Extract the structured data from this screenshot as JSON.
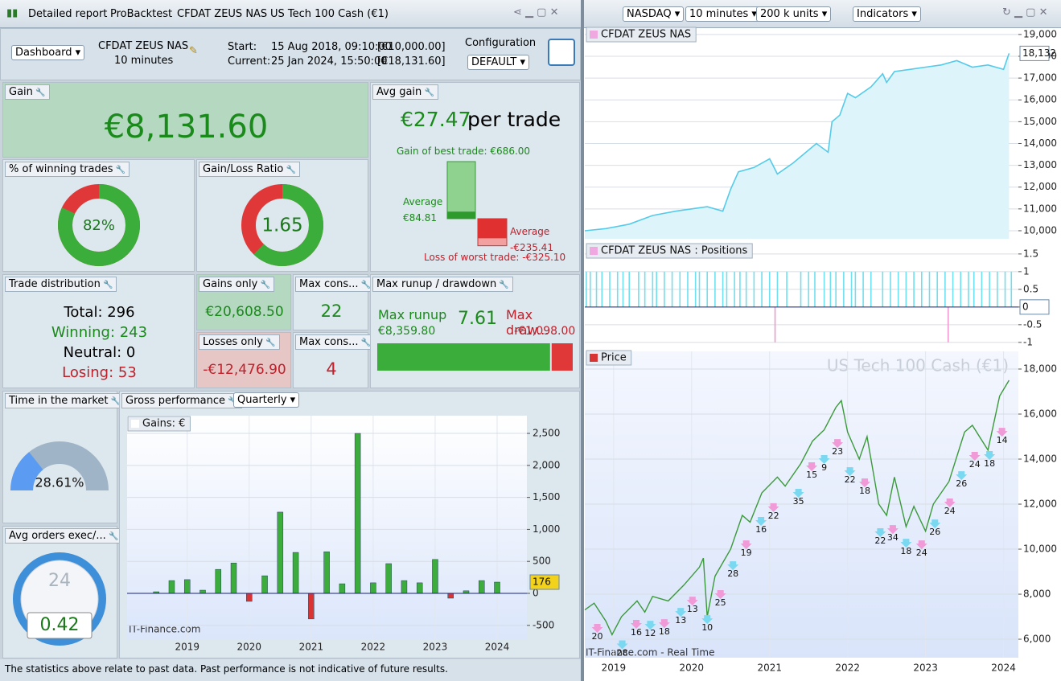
{
  "left_toolbar": {
    "title": "Detailed report",
    "tabs": [
      "ProBacktest",
      "CFDAT ZEUS NAS",
      "US Tech 100 Cash (€1)"
    ]
  },
  "header": {
    "view_select": "Dashboard",
    "system_name": "CFDAT ZEUS NAS",
    "timeframe": "10 minutes",
    "start_label": "Start:",
    "start_value": "15 Aug 2018, 09:10:00",
    "start_capital": "[€10,000.00]",
    "current_label": "Current:",
    "current_value": "25 Jan 2024, 15:50:00",
    "current_capital": "[€18,131.60]",
    "config_label": "Configuration",
    "config_select": "DEFAULT"
  },
  "gain": {
    "label": "Gain",
    "value": "€8,131.60"
  },
  "avg_gain": {
    "label": "Avg gain",
    "value": "€27.47",
    "unit": "per trade",
    "best_trade": "Gain of best trade: €686.00",
    "average_win_label": "Average",
    "average_win": "€84.81",
    "average_loss_label": "Average",
    "average_loss": "-€235.41",
    "worst_trade": "Loss of worst trade: -€325.10",
    "bars": {
      "best": 686,
      "average_win": 84.81,
      "average_loss": -235.41,
      "worst": -325.1
    }
  },
  "winning_trades": {
    "label": "% of winning trades",
    "value": 82,
    "value_label": "82%"
  },
  "gain_loss_ratio": {
    "label": "Gain/Loss Ratio",
    "value": 1.65
  },
  "trade_distribution": {
    "label": "Trade distribution",
    "total": "Total: 296",
    "winning": "Winning: 243",
    "neutral": "Neutral: 0",
    "losing": "Losing: 53"
  },
  "gains_only": {
    "label": "Gains only",
    "value": "€20,608.50"
  },
  "losses_only": {
    "label": "Losses only",
    "value": "-€12,476.90"
  },
  "max_consecutive_wins": {
    "label": "Max cons...",
    "value": 22
  },
  "max_consecutive_losses": {
    "label": "Max cons...",
    "value": 4
  },
  "runup_drawdown": {
    "label": "Max runup / drawdown",
    "runup_label": "Max runup",
    "runup": "€8,359.80",
    "ratio": 7.61,
    "drawdown_label": "Max draw...",
    "drawdown": "-€1,098.00",
    "bar": {
      "runup": 8359.8,
      "drawdown": 1098
    }
  },
  "time_in_market": {
    "label": "Time in the market",
    "value": 28.61,
    "value_label": "28.61%"
  },
  "avg_orders": {
    "label": "Avg orders exec/...",
    "clock": 24,
    "value": 0.42
  },
  "gross_performance": {
    "label": "Gross performance",
    "period": "Quarterly",
    "chart": {
      "type": "bar",
      "legend": "Gains: €",
      "watermark": "IT-Finance.com",
      "x": [
        2018.5,
        2018.75,
        2019.0,
        2019.25,
        2019.5,
        2019.75,
        2020.0,
        2020.25,
        2020.5,
        2020.75,
        2021.0,
        2021.25,
        2021.5,
        2021.75,
        2022.0,
        2022.25,
        2022.5,
        2022.75,
        2023.0,
        2023.25,
        2023.5,
        2023.75,
        2024.0
      ],
      "values": [
        25,
        200,
        215,
        50,
        375,
        475,
        -125,
        275,
        1270,
        640,
        -400,
        650,
        150,
        2500,
        165,
        465,
        200,
        165,
        530,
        -75,
        40,
        200,
        176
      ],
      "xlim": [
        2018.03,
        2024.48
      ],
      "ylim": [
        -716,
        2777
      ],
      "xticks": [
        2019,
        2020,
        2021,
        2022,
        2023,
        2024
      ],
      "yticks": [
        -500,
        0,
        500,
        {
          "value": 1000,
          "label": "1,000"
        },
        {
          "value": 1500,
          "label": "1,500"
        },
        {
          "value": 2000,
          "label": "2,000"
        },
        {
          "value": 2500,
          "label": "2,500"
        }
      ]
    }
  },
  "footer": "The statistics above relate to past data. Past performance is not indicative of future results.",
  "right_toolbar": {
    "market": "NASDAQ",
    "timeframe": "10 minutes",
    "size": "200 k units",
    "indicators": "Indicators"
  },
  "equity_chart": {
    "type": "line",
    "title": "CFDAT ZEUS NAS",
    "x": [
      2018.63,
      2018.9,
      2019.2,
      2019.5,
      2019.8,
      2020.0,
      2020.2,
      2020.4,
      2020.5,
      2020.6,
      2020.8,
      2021.0,
      2021.1,
      2021.3,
      2021.5,
      2021.6,
      2021.75,
      2021.8,
      2021.9,
      2022.0,
      2022.1,
      2022.3,
      2022.45,
      2022.5,
      2022.6,
      2022.8,
      2023.0,
      2023.2,
      2023.4,
      2023.6,
      2023.8,
      2024.0,
      2024.07
    ],
    "values": [
      10000,
      10100,
      10300,
      10700,
      10900,
      11000,
      11100,
      10900,
      11900,
      12700,
      12900,
      13300,
      12600,
      13100,
      13700,
      14000,
      13600,
      15000,
      15300,
      16300,
      16100,
      16600,
      17200,
      16800,
      17300,
      17400,
      17500,
      17600,
      17800,
      17500,
      17600,
      17400,
      18132
    ],
    "value_labels": [
      null,
      null,
      null,
      null,
      null,
      null,
      null,
      null,
      null,
      null,
      null,
      null,
      null,
      null,
      null,
      null,
      null,
      null,
      null,
      null,
      null,
      null,
      null,
      null,
      null,
      null,
      null,
      null,
      null,
      null,
      null,
      null,
      "18,132"
    ],
    "xlim": [
      2018.63,
      2024.19
    ],
    "ylim": [
      9630,
      19290
    ],
    "yticks": [
      {
        "value": 10000,
        "label": "10,000"
      },
      {
        "value": 11000,
        "label": "11,000"
      },
      {
        "value": 12000,
        "label": "12,000"
      },
      {
        "value": 13000,
        "label": "13,000"
      },
      {
        "value": 14000,
        "label": "14,000"
      },
      {
        "value": 15000,
        "label": "15,000"
      },
      {
        "value": 16000,
        "label": "16,000"
      },
      {
        "value": 17000,
        "label": "17,000"
      },
      {
        "value": 18000,
        "label": "18,000"
      },
      {
        "value": 19000,
        "label": "19,000"
      }
    ]
  },
  "positions_chart": {
    "type": "bar",
    "title": "CFDAT ZEUS NAS : Positions",
    "x": [
      2018.65,
      2018.7,
      2018.78,
      2018.85,
      2018.95,
      2019.05,
      2019.12,
      2019.2,
      2019.32,
      2019.4,
      2019.5,
      2019.55,
      2019.65,
      2019.75,
      2019.85,
      2019.95,
      2020.05,
      2020.1,
      2020.2,
      2020.3,
      2020.4,
      2020.45,
      2020.55,
      2020.62,
      2020.7,
      2020.8,
      2020.9,
      2021.0,
      2021.07,
      2021.1,
      2021.22,
      2021.4,
      2021.5,
      2021.58,
      2021.7,
      2021.78,
      2021.85,
      2021.95,
      2022.05,
      2022.1,
      2022.2,
      2022.3,
      2022.45,
      2022.55,
      2022.65,
      2022.75,
      2022.85,
      2022.95,
      2023.05,
      2023.15,
      2023.25,
      2023.29,
      2023.35,
      2023.45,
      2023.55,
      2023.62,
      2023.72,
      2023.82,
      2023.92,
      2024.02,
      2024.1,
      2024.19
    ],
    "values": [
      1,
      1,
      1,
      1,
      1,
      1,
      1,
      1,
      1,
      1,
      1,
      1,
      1,
      1,
      1,
      1,
      1,
      1,
      1,
      1,
      1,
      1,
      1,
      1,
      1,
      1,
      1,
      1,
      -1,
      1,
      1,
      1,
      1,
      1,
      1,
      1,
      1,
      1,
      1,
      1,
      1,
      1,
      1,
      1,
      1,
      1,
      1,
      1,
      1,
      1,
      1,
      -1,
      1,
      1,
      1,
      1,
      1,
      1,
      1,
      1,
      1,
      0
    ],
    "xlim": [
      2018.63,
      2024.19
    ],
    "ylim": [
      -1.14,
      1.77
    ],
    "yticks": [
      1.5,
      1,
      0.5,
      0,
      -0.5,
      -1
    ]
  },
  "price_chart": {
    "type": "line",
    "title": "Price",
    "watermark": "US Tech 100 Cash (€1)",
    "x": [
      2018.63,
      2018.75,
      2018.9,
      2018.98,
      2019.1,
      2019.3,
      2019.4,
      2019.5,
      2019.7,
      2019.9,
      2020.1,
      2020.15,
      2020.2,
      2020.3,
      2020.5,
      2020.65,
      2020.75,
      2020.9,
      2021.1,
      2021.2,
      2021.4,
      2021.55,
      2021.7,
      2021.85,
      2021.92,
      2022.0,
      2022.15,
      2022.25,
      2022.4,
      2022.5,
      2022.6,
      2022.75,
      2022.85,
      2023.0,
      2023.1,
      2023.3,
      2023.5,
      2023.6,
      2023.8,
      2023.95,
      2024.07
    ],
    "values": [
      7300,
      7600,
      6800,
      6200,
      7000,
      7700,
      7200,
      7900,
      7700,
      8400,
      9200,
      9600,
      7000,
      8800,
      10000,
      11500,
      11200,
      12500,
      13200,
      12800,
      13800,
      14800,
      15300,
      16300,
      16600,
      15200,
      14000,
      15000,
      12000,
      11500,
      13200,
      11000,
      11900,
      10800,
      12000,
      13000,
      15200,
      15500,
      14400,
      16800,
      17500
    ],
    "xlim": [
      2018.63,
      2024.19
    ],
    "ylim": [
      5180,
      18786
    ],
    "xticks": [
      2019,
      2020,
      2021,
      2022,
      2023,
      2024
    ],
    "yticks": [
      {
        "value": 6000,
        "label": "6,000"
      },
      {
        "value": 8000,
        "label": "8,000"
      },
      {
        "value": 10000,
        "label": "10,000"
      },
      {
        "value": 12000,
        "label": "12,000"
      },
      {
        "value": 14000,
        "label": "14,000"
      },
      {
        "value": 16000,
        "label": "16,000"
      },
      {
        "value": 18000,
        "label": "18,000"
      }
    ],
    "annotations": [
      {
        "x": 2018.79,
        "y": 6180,
        "label": "20"
      },
      {
        "x": 2019.11,
        "y": 5450,
        "label": "28"
      },
      {
        "x": 2019.29,
        "y": 6360,
        "label": "16"
      },
      {
        "x": 2019.47,
        "y": 6320,
        "label": "12"
      },
      {
        "x": 2019.65,
        "y": 6390,
        "label": "18"
      },
      {
        "x": 2019.86,
        "y": 6890,
        "label": "13"
      },
      {
        "x": 2020.01,
        "y": 7390,
        "label": "13"
      },
      {
        "x": 2020.2,
        "y": 6570,
        "label": "10"
      },
      {
        "x": 2020.37,
        "y": 7680,
        "label": "25"
      },
      {
        "x": 2020.53,
        "y": 8960,
        "label": "28"
      },
      {
        "x": 2020.7,
        "y": 9890,
        "label": "19"
      },
      {
        "x": 2020.89,
        "y": 10930,
        "label": "16"
      },
      {
        "x": 2021.05,
        "y": 11540,
        "label": "22"
      },
      {
        "x": 2021.37,
        "y": 12180,
        "label": "35"
      },
      {
        "x": 2021.54,
        "y": 13360,
        "label": "15"
      },
      {
        "x": 2021.7,
        "y": 13680,
        "label": "9"
      },
      {
        "x": 2021.87,
        "y": 14390,
        "label": "23"
      },
      {
        "x": 2022.03,
        "y": 13140,
        "label": "22"
      },
      {
        "x": 2022.22,
        "y": 12640,
        "label": "18"
      },
      {
        "x": 2022.42,
        "y": 10430,
        "label": "22"
      },
      {
        "x": 2022.58,
        "y": 10570,
        "label": "34"
      },
      {
        "x": 2022.75,
        "y": 9960,
        "label": "18"
      },
      {
        "x": 2022.95,
        "y": 9890,
        "label": "24"
      },
      {
        "x": 2023.12,
        "y": 10820,
        "label": "26"
      },
      {
        "x": 2023.31,
        "y": 11750,
        "label": "24"
      },
      {
        "x": 2023.46,
        "y": 12960,
        "label": "26"
      },
      {
        "x": 2023.63,
        "y": 13820,
        "label": "24"
      },
      {
        "x": 2023.82,
        "y": 13860,
        "label": "18"
      },
      {
        "x": 2023.98,
        "y": 14890,
        "label": "14"
      }
    ]
  },
  "source": "IT-Finance.com - Real Time"
}
